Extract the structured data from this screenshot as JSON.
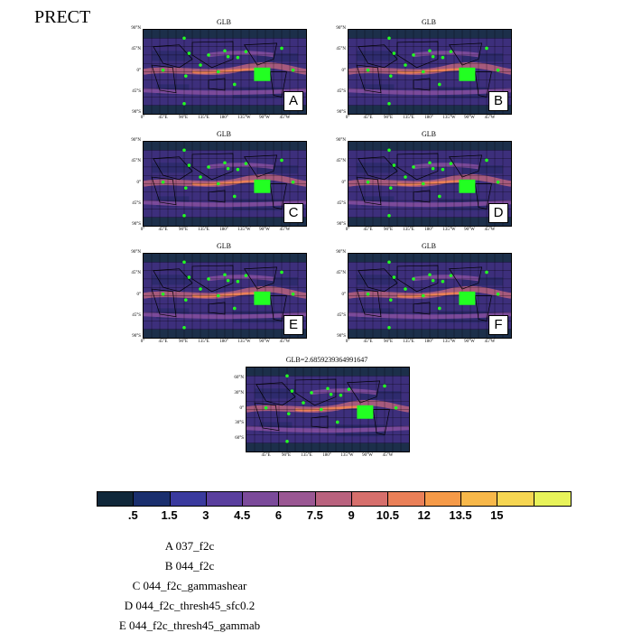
{
  "title": "PRECT",
  "panels": [
    {
      "title": "GLB",
      "letter": "A"
    },
    {
      "title": "GLB",
      "letter": "B"
    },
    {
      "title": "GLB",
      "letter": "C"
    },
    {
      "title": "GLB",
      "letter": "D"
    },
    {
      "title": "GLB",
      "letter": "E"
    },
    {
      "title": "GLB",
      "letter": "F"
    },
    {
      "title": "GLB=2.685923936499164 7",
      "letter": ""
    }
  ],
  "lat_ticks": [
    "90°N",
    "45°N",
    "0°",
    "45°S",
    "90°S"
  ],
  "lon_ticks": [
    "0°",
    "45°E",
    "90°E",
    "135°E",
    "180°",
    "135°W",
    "90°W",
    "45°W"
  ],
  "diff_lat_ticks": [
    "60°N",
    "30°N",
    "0°",
    "30°S",
    "60°S"
  ],
  "diff_lon_ticks": [
    "45°E",
    "90°E",
    "135°E",
    "180°",
    "135°W",
    "90°W",
    "45°W"
  ],
  "colorbar": {
    "colors": [
      "#10283a",
      "#1a2f6e",
      "#3a3a9e",
      "#5a3f9e",
      "#7b4a9a",
      "#9a5793",
      "#b9627e",
      "#d66f6c",
      "#ea8058",
      "#f59a48",
      "#f8b84a",
      "#f6d652",
      "#e8f35a"
    ],
    "labels": [
      ".5",
      "1.5",
      "3",
      "4.5",
      "6",
      "7.5",
      "9",
      "10.5",
      "12",
      "13.5",
      "15"
    ]
  },
  "legend": [
    "A  037_f2c",
    "B  044_f2c",
    "C  044_f2c_gammashear",
    "D  044_f2c_thresh45_sfc0.2",
    "E  044_f2c_thresh45_gammab"
  ]
}
